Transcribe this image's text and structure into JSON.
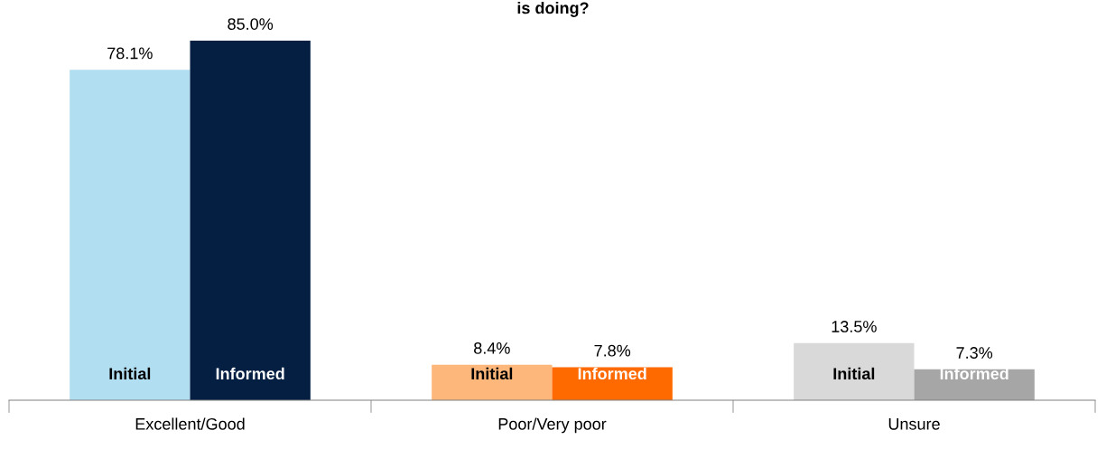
{
  "chart_data": {
    "type": "bar",
    "title": "is doing?",
    "categories": [
      "Excellent/Good",
      "Poor/Very poor",
      "Unsure"
    ],
    "series": [
      {
        "name": "Initial",
        "colors": [
          "#b2def2",
          "#fdb77a",
          "#d9d9d9"
        ],
        "values": [
          78.1,
          8.4,
          13.5
        ],
        "value_labels": [
          "78.1%",
          "8.4%",
          "13.5%"
        ]
      },
      {
        "name": "Informed",
        "colors": [
          "#051f42",
          "#ff6a00",
          "#a6a6a6"
        ],
        "values": [
          85.0,
          7.8,
          7.3
        ],
        "value_labels": [
          "85.0%",
          "7.8%",
          "7.3%"
        ]
      }
    ],
    "tick_labels": "x",
    "grid": false,
    "legend": false
  }
}
